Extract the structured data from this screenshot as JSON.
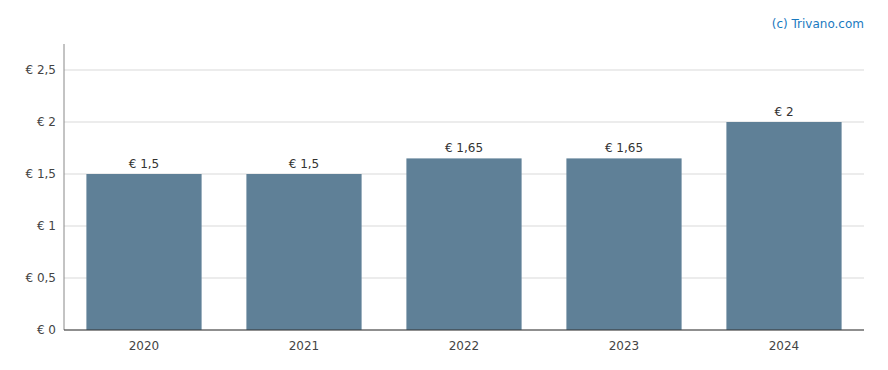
{
  "chart_data": {
    "type": "bar",
    "categories": [
      "2020",
      "2021",
      "2022",
      "2023",
      "2024"
    ],
    "values": [
      1.5,
      1.5,
      1.65,
      1.65,
      2.0
    ],
    "value_labels": [
      "€ 1,5",
      "€ 1,5",
      "€ 1,65",
      "€ 1,65",
      "€ 2"
    ],
    "data_labels": true,
    "color": "#5f8097",
    "ylim": [
      0,
      2.75
    ],
    "yticks": [
      {
        "value": 0,
        "label": "€ 0"
      },
      {
        "value": 0.5,
        "label": "€ 0,5"
      },
      {
        "value": 1.0,
        "label": "€ 1"
      },
      {
        "value": 1.5,
        "label": "€ 1,5"
      },
      {
        "value": 2.0,
        "label": "€ 2"
      },
      {
        "value": 2.5,
        "label": "€ 2,5"
      }
    ],
    "grid": true,
    "annotations": [
      "(c) Trivano.com"
    ]
  }
}
